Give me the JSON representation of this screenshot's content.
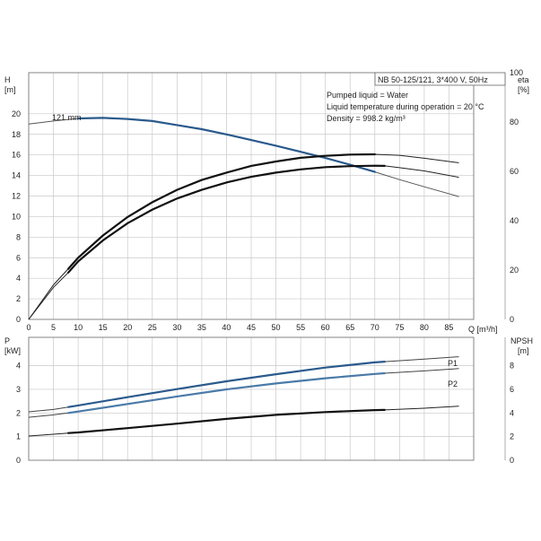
{
  "header": {
    "title": "NB 50-125/121, 3*400 V, 50Hz",
    "info": [
      "Pumped liquid = Water",
      "Liquid temperature during operation = 20 °C",
      "Density = 998.2 kg/m³"
    ]
  },
  "chart_data": [
    {
      "type": "line",
      "title": "",
      "grid": true,
      "xlabel": "Q [m³/h]",
      "xlim": [
        0,
        90
      ],
      "xticks": [
        0,
        5,
        10,
        15,
        20,
        25,
        30,
        35,
        40,
        45,
        50,
        55,
        60,
        65,
        70,
        75,
        80,
        85
      ],
      "ylabel_left": {
        "name": "H",
        "unit": "[m]"
      },
      "ylim_left": [
        0,
        24
      ],
      "yticks_left": [
        0,
        2,
        4,
        6,
        8,
        10,
        12,
        14,
        16,
        18,
        20
      ],
      "ylabel_right": {
        "name": "eta",
        "unit": "[%]"
      },
      "ylim_right": [
        0,
        100
      ],
      "yticks_right": [
        0,
        20,
        40,
        60,
        80,
        100
      ],
      "annotations": [
        {
          "text": "121 mm",
          "x": 4.5,
          "y": 19.7
        }
      ],
      "series": [
        {
          "name": "121 mm",
          "axis": "left",
          "color": "#555555",
          "points": [
            [
              0,
              19.0
            ],
            [
              5,
              19.3
            ],
            [
              10,
              19.55
            ],
            [
              15,
              19.6
            ],
            [
              20,
              19.5
            ],
            [
              25,
              19.3
            ],
            [
              30,
              18.9
            ],
            [
              35,
              18.5
            ],
            [
              40,
              18.0
            ],
            [
              45,
              17.45
            ],
            [
              50,
              16.9
            ],
            [
              55,
              16.3
            ],
            [
              60,
              15.7
            ],
            [
              65,
              15.05
            ],
            [
              70,
              14.35
            ],
            [
              75,
              13.6
            ],
            [
              80,
              12.9
            ],
            [
              87,
              11.95
            ]
          ],
          "highlight_range": [
            8,
            72
          ],
          "highlight_color": "#2a5a8c"
        },
        {
          "name": "",
          "axis": "right",
          "color": "#222222",
          "points": [
            [
              0,
              0
            ],
            [
              5,
              13
            ],
            [
              8,
              19
            ],
            [
              10,
              23.5
            ],
            [
              15,
              32
            ],
            [
              20,
              39
            ],
            [
              25,
              44.5
            ],
            [
              30,
              49
            ],
            [
              35,
              52.5
            ],
            [
              40,
              55.5
            ],
            [
              45,
              57.8
            ],
            [
              50,
              59.5
            ],
            [
              55,
              60.8
            ],
            [
              60,
              61.7
            ],
            [
              65,
              62.1
            ],
            [
              70,
              62.3
            ],
            [
              72,
              62.2
            ],
            [
              75,
              61.5
            ],
            [
              80,
              60.2
            ],
            [
              87,
              57.6
            ]
          ],
          "highlight_range": [
            8,
            72
          ],
          "highlight_color": "#111111"
        },
        {
          "name": "",
          "axis": "right",
          "color": "#222222",
          "points": [
            [
              0,
              0
            ],
            [
              5,
              14
            ],
            [
              8,
              20.5
            ],
            [
              10,
              25
            ],
            [
              15,
              34
            ],
            [
              20,
              41.5
            ],
            [
              25,
              47.5
            ],
            [
              30,
              52.5
            ],
            [
              35,
              56.5
            ],
            [
              40,
              59.5
            ],
            [
              45,
              62.2
            ],
            [
              50,
              64
            ],
            [
              55,
              65.5
            ],
            [
              60,
              66.3
            ],
            [
              65,
              66.8
            ],
            [
              70,
              66.9
            ],
            [
              75,
              66.5
            ],
            [
              80,
              65.3
            ],
            [
              87,
              63.5
            ]
          ],
          "highlight_range": [
            8,
            72
          ],
          "highlight_color": "#111111"
        }
      ]
    },
    {
      "type": "line",
      "title": "",
      "grid": true,
      "xlim": [
        0,
        90
      ],
      "ylabel_left": {
        "name": "P",
        "unit": "[kW]"
      },
      "ylim_left": [
        0,
        5.2
      ],
      "yticks_left": [
        0,
        1,
        2,
        3,
        4
      ],
      "ylabel_right": {
        "name": "NPSH",
        "unit": "[m]"
      },
      "ylim_right": [
        0,
        10.4
      ],
      "yticks_right": [
        0,
        2,
        4,
        6,
        8
      ],
      "series": [
        {
          "name": "P1",
          "axis": "left",
          "color": "#444444",
          "points": [
            [
              0,
              2.05
            ],
            [
              5,
              2.15
            ],
            [
              8,
              2.25
            ],
            [
              10,
              2.32
            ],
            [
              20,
              2.67
            ],
            [
              30,
              3.01
            ],
            [
              40,
              3.34
            ],
            [
              50,
              3.64
            ],
            [
              60,
              3.92
            ],
            [
              70,
              4.14
            ],
            [
              72,
              4.17
            ],
            [
              80,
              4.28
            ],
            [
              87,
              4.38
            ]
          ],
          "highlight_range": [
            8,
            72
          ],
          "highlight_color": "#2a5a8c"
        },
        {
          "name": "P2",
          "axis": "left",
          "color": "#444444",
          "points": [
            [
              0,
              1.82
            ],
            [
              5,
              1.92
            ],
            [
              8,
              2.0
            ],
            [
              10,
              2.06
            ],
            [
              20,
              2.38
            ],
            [
              30,
              2.7
            ],
            [
              40,
              3.0
            ],
            [
              50,
              3.25
            ],
            [
              60,
              3.47
            ],
            [
              70,
              3.65
            ],
            [
              72,
              3.68
            ],
            [
              80,
              3.78
            ],
            [
              87,
              3.88
            ]
          ],
          "highlight_range": [
            8,
            72
          ],
          "highlight_color": "#4a7aa8"
        },
        {
          "name": "",
          "axis": "right",
          "color": "#222222",
          "points": [
            [
              0,
              2.05
            ],
            [
              5,
              2.2
            ],
            [
              8,
              2.3
            ],
            [
              10,
              2.35
            ],
            [
              20,
              2.72
            ],
            [
              30,
              3.1
            ],
            [
              40,
              3.5
            ],
            [
              50,
              3.84
            ],
            [
              60,
              4.08
            ],
            [
              70,
              4.24
            ],
            [
              72,
              4.26
            ],
            [
              80,
              4.4
            ],
            [
              87,
              4.58
            ]
          ],
          "highlight_range": [
            8,
            72
          ],
          "highlight_color": "#111111"
        }
      ]
    }
  ]
}
